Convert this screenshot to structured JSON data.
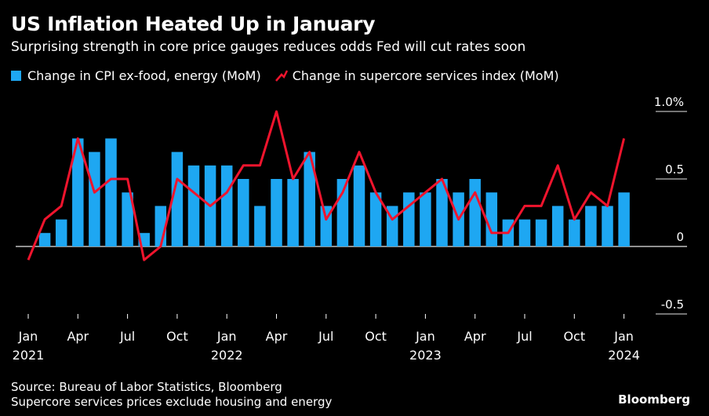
{
  "title": "US Inflation Heated Up in January",
  "subtitle": "Surprising strength in core price gauges reduces odds Fed will cut rates soon",
  "footer": {
    "source": "Source: Bureau of Labor Statistics, Bloomberg",
    "note": "Supercore services prices exclude housing and energy",
    "brand": "Bloomberg"
  },
  "colors": {
    "bar": "#1ea7f2",
    "line": "#f0142d",
    "axis": "#ffffff",
    "grid": "#ffffff"
  },
  "chart_data": {
    "type": "bar",
    "title": "US Inflation Heated Up in January",
    "subtitle": "Surprising strength in core price gauges reduces odds Fed will cut rates soon",
    "ylim": [
      -0.5,
      1.0
    ],
    "yticks": [
      1.0,
      0.5,
      0,
      -0.5
    ],
    "ytick_labels": [
      "1.0%",
      "0.5",
      "0",
      "-0.5"
    ],
    "legend_position": "top-left",
    "grid": "horizontal",
    "x_ticks": [
      {
        "index": 0,
        "label": "Jan",
        "year": "2021"
      },
      {
        "index": 3,
        "label": "Apr",
        "year": ""
      },
      {
        "index": 6,
        "label": "Jul",
        "year": ""
      },
      {
        "index": 9,
        "label": "Oct",
        "year": ""
      },
      {
        "index": 12,
        "label": "Jan",
        "year": "2022"
      },
      {
        "index": 15,
        "label": "Apr",
        "year": ""
      },
      {
        "index": 18,
        "label": "Jul",
        "year": ""
      },
      {
        "index": 21,
        "label": "Oct",
        "year": ""
      },
      {
        "index": 24,
        "label": "Jan",
        "year": "2023"
      },
      {
        "index": 27,
        "label": "Apr",
        "year": ""
      },
      {
        "index": 30,
        "label": "Jul",
        "year": ""
      },
      {
        "index": 33,
        "label": "Oct",
        "year": ""
      },
      {
        "index": 36,
        "label": "Jan",
        "year": "2024"
      }
    ],
    "categories": [
      "2021-01",
      "2021-02",
      "2021-03",
      "2021-04",
      "2021-05",
      "2021-06",
      "2021-07",
      "2021-08",
      "2021-09",
      "2021-10",
      "2021-11",
      "2021-12",
      "2022-01",
      "2022-02",
      "2022-03",
      "2022-04",
      "2022-05",
      "2022-06",
      "2022-07",
      "2022-08",
      "2022-09",
      "2022-10",
      "2022-11",
      "2022-12",
      "2023-01",
      "2023-02",
      "2023-03",
      "2023-04",
      "2023-05",
      "2023-06",
      "2023-07",
      "2023-08",
      "2023-09",
      "2023-10",
      "2023-11",
      "2023-12",
      "2024-01"
    ],
    "series": [
      {
        "name": "Change in CPI ex-food, energy (MoM)",
        "type": "bar",
        "values": [
          0.0,
          0.1,
          0.2,
          0.8,
          0.7,
          0.8,
          0.4,
          0.1,
          0.3,
          0.7,
          0.6,
          0.6,
          0.6,
          0.5,
          0.3,
          0.5,
          0.5,
          0.7,
          0.3,
          0.5,
          0.6,
          0.4,
          0.3,
          0.4,
          0.4,
          0.5,
          0.4,
          0.5,
          0.4,
          0.2,
          0.2,
          0.2,
          0.3,
          0.2,
          0.3,
          0.3,
          0.4
        ]
      },
      {
        "name": "Change in supercore services index (MoM)",
        "type": "line",
        "values": [
          -0.1,
          0.2,
          0.3,
          0.8,
          0.4,
          0.5,
          0.5,
          -0.1,
          0.0,
          0.5,
          0.4,
          0.3,
          0.4,
          0.6,
          0.6,
          1.0,
          0.5,
          0.7,
          0.2,
          0.4,
          0.7,
          0.4,
          0.2,
          0.3,
          0.4,
          0.5,
          0.2,
          0.4,
          0.1,
          0.1,
          0.3,
          0.3,
          0.6,
          0.2,
          0.4,
          0.3,
          0.8
        ]
      }
    ]
  }
}
